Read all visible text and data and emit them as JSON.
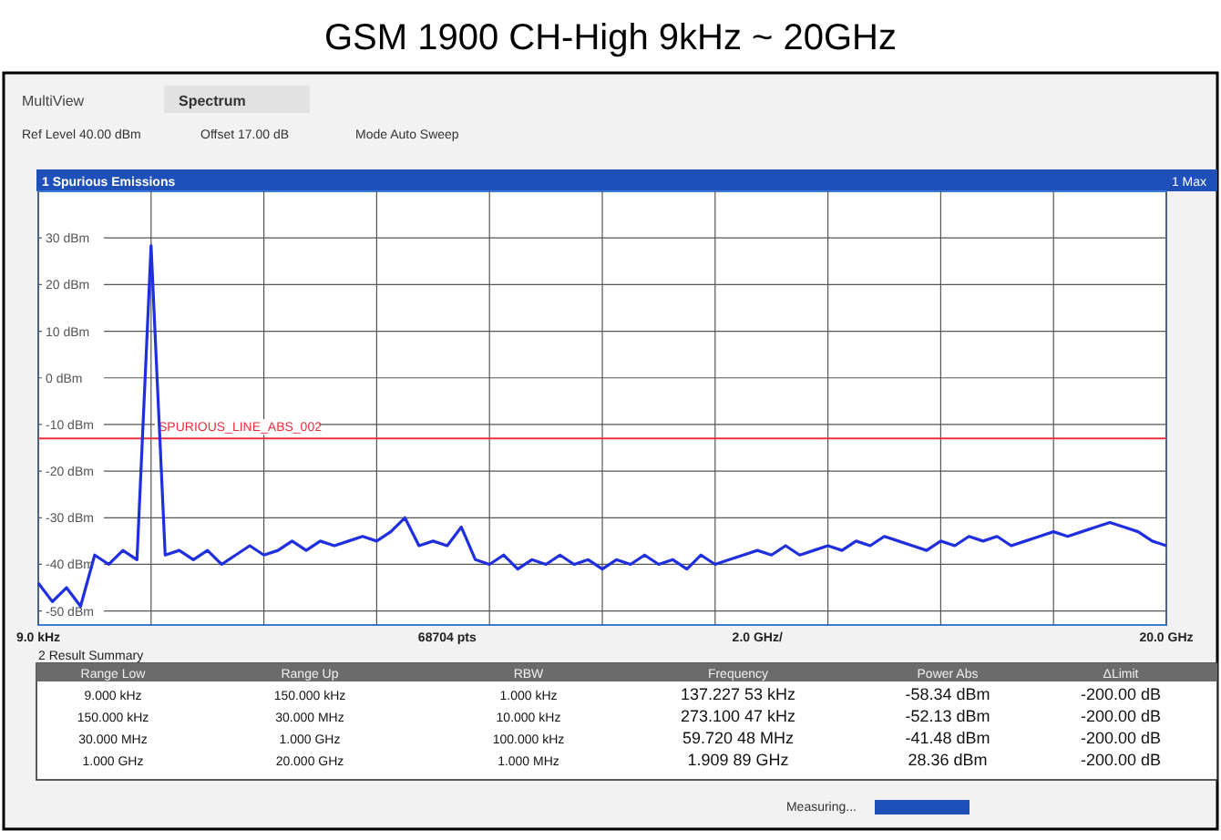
{
  "chart_data": {
    "type": "line",
    "title": "GSM 1900 CH-High 9kHz ~ 20GHz",
    "categories": [
      "9.0 kHz",
      null,
      null,
      null,
      null,
      null,
      null,
      null,
      null,
      null,
      null,
      null,
      null,
      null,
      null,
      null,
      null,
      null,
      null,
      null,
      null,
      null,
      null,
      null,
      null,
      null,
      null,
      null,
      null,
      "68704 pts",
      null,
      null,
      null,
      null,
      null,
      null,
      null,
      null,
      null,
      null,
      null,
      null,
      null,
      null,
      null,
      null,
      null,
      null,
      null,
      null,
      null,
      "2.0 GHz/",
      null,
      null,
      null,
      null,
      null,
      null,
      null,
      null,
      null,
      null,
      null,
      null,
      null,
      null,
      null,
      null,
      null,
      null,
      null,
      null,
      null,
      null,
      null,
      null,
      null,
      null,
      null,
      null,
      "20.0 GHz"
    ],
    "ylim": [
      -53,
      40
    ],
    "yticks": [
      {
        "value": 30,
        "label": "30 dBm"
      },
      {
        "value": 20,
        "label": "20 dBm"
      },
      {
        "value": 10,
        "label": "10 dBm"
      },
      {
        "value": 0,
        "label": "0 dBm"
      },
      {
        "value": -10,
        "label": "-10 dBm"
      },
      {
        "value": -20,
        "label": "-20 dBm"
      },
      {
        "value": -30,
        "label": "-30 dBm"
      },
      {
        "value": -40,
        "label": "-40 dBm"
      },
      {
        "value": -50,
        "label": "-50 dBm"
      }
    ],
    "grid": true,
    "ref_lines": [
      {
        "axis": "y",
        "value": -13,
        "label": "SPURIOUS_LINE_ABS_002",
        "color": "#e8303c"
      }
    ],
    "series": [
      {
        "color": "#1f2fe0",
        "values": [
          -44,
          -48,
          -45,
          -49,
          -38,
          -40,
          -37,
          -39,
          28.36,
          -38,
          -37,
          -39,
          -37,
          -40,
          -38,
          -36,
          -38,
          -37,
          -35,
          -37,
          -35,
          -36,
          -35,
          -34,
          -35,
          -33,
          -30,
          -36,
          -35,
          -36,
          -32,
          -39,
          -40,
          -38,
          -41,
          -39,
          -40,
          -38,
          -40,
          -39,
          -41,
          -39,
          -40,
          -38,
          -40,
          -39,
          -41,
          -38,
          -40,
          -39,
          -38,
          -37,
          -38,
          -36,
          -38,
          -37,
          -36,
          -37,
          -35,
          -36,
          -34,
          -35,
          -36,
          -37,
          -35,
          -36,
          -34,
          -35,
          -34,
          -36,
          -35,
          -34,
          -33,
          -34,
          -33,
          -32,
          -31,
          -32,
          -33,
          -35,
          -36
        ]
      }
    ],
    "annotations": [
      "MultiView",
      "Spectrum",
      "Ref Level 40.00 dBm",
      "Offset 17.00 dB",
      "Mode Auto Sweep",
      "1 Spurious Emissions",
      "1 Max",
      "2 Result Summary",
      "Range Low",
      "Range Up",
      "RBW",
      "Frequency",
      "Power Abs",
      "ΔLimit",
      "9.000 kHz",
      "150.000 kHz",
      "1.000 kHz",
      "137.227 53 kHz",
      "-58.34 dBm",
      "-200.00 dB",
      "150.000 kHz",
      "30.000 MHz",
      "10.000 kHz",
      "273.100 47 kHz",
      "-52.13 dBm",
      "-200.00 dB",
      "30.000 MHz",
      "1.000 GHz",
      "100.000 kHz",
      "59.720 48 MHz",
      "-41.48 dBm",
      "-200.00 dB",
      "1.000 GHz",
      "20.000 GHz",
      "1.000 MHz",
      "1.909 89 GHz",
      "28.36 dBm",
      "-200.00 dB",
      "Measuring..."
    ]
  }
}
